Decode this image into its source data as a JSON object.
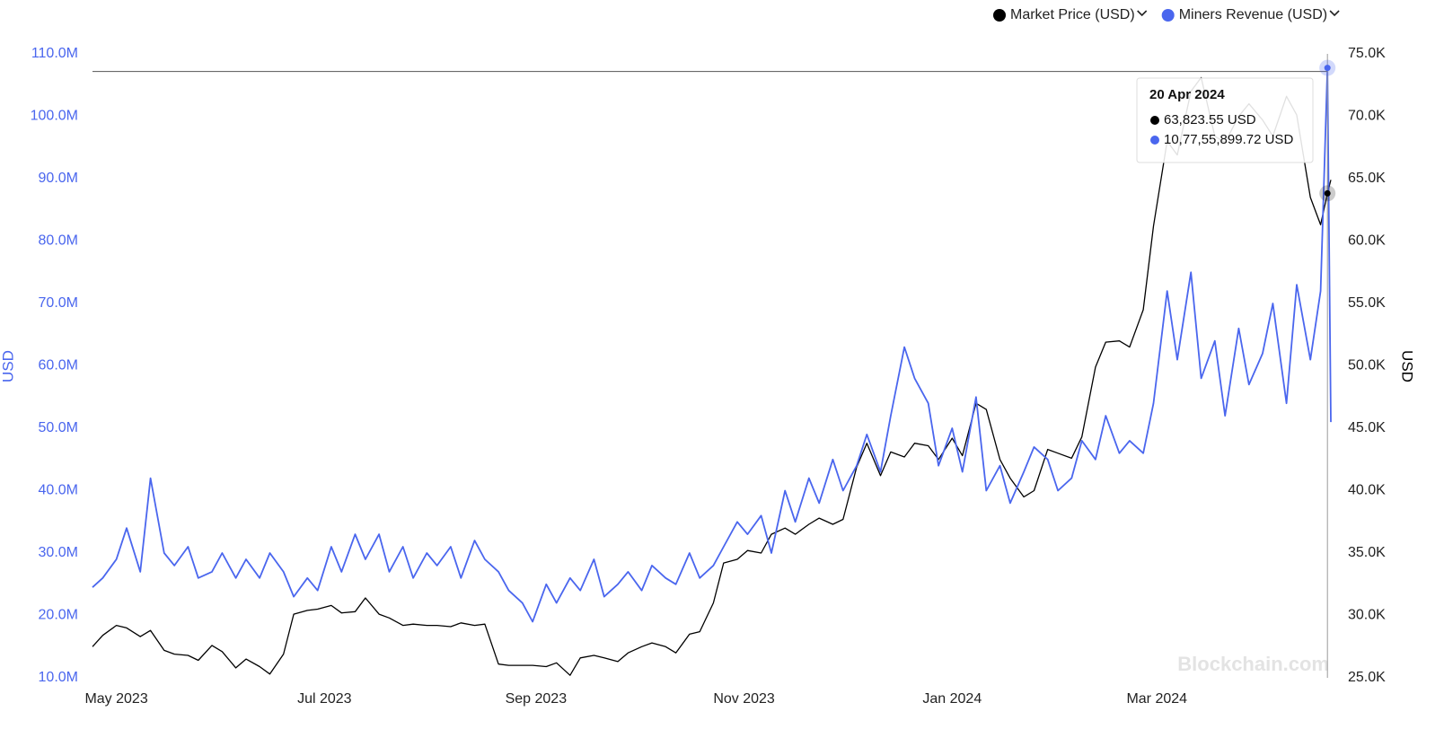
{
  "chart_data": {
    "type": "line",
    "legend": "top-right",
    "y_label": "USD",
    "y2_label": "USD",
    "watermark": "Blockchain.com",
    "x": [
      "2023-04-24",
      "2023-04-27",
      "2023-05-01",
      "2023-05-04",
      "2023-05-08",
      "2023-05-11",
      "2023-05-15",
      "2023-05-18",
      "2023-05-22",
      "2023-05-25",
      "2023-05-29",
      "2023-06-01",
      "2023-06-05",
      "2023-06-08",
      "2023-06-12",
      "2023-06-15",
      "2023-06-19",
      "2023-06-22",
      "2023-06-26",
      "2023-06-29",
      "2023-07-03",
      "2023-07-06",
      "2023-07-10",
      "2023-07-13",
      "2023-07-17",
      "2023-07-20",
      "2023-07-24",
      "2023-07-27",
      "2023-07-31",
      "2023-08-03",
      "2023-08-07",
      "2023-08-10",
      "2023-08-14",
      "2023-08-17",
      "2023-08-21",
      "2023-08-24",
      "2023-08-28",
      "2023-08-31",
      "2023-09-04",
      "2023-09-07",
      "2023-09-11",
      "2023-09-14",
      "2023-09-18",
      "2023-09-21",
      "2023-09-25",
      "2023-09-28",
      "2023-10-02",
      "2023-10-05",
      "2023-10-09",
      "2023-10-12",
      "2023-10-16",
      "2023-10-19",
      "2023-10-23",
      "2023-10-26",
      "2023-10-30",
      "2023-11-02",
      "2023-11-06",
      "2023-11-09",
      "2023-11-13",
      "2023-11-16",
      "2023-11-20",
      "2023-11-23",
      "2023-11-27",
      "2023-11-30",
      "2023-12-04",
      "2023-12-07",
      "2023-12-11",
      "2023-12-14",
      "2023-12-18",
      "2023-12-21",
      "2023-12-25",
      "2023-12-28",
      "2024-01-01",
      "2024-01-04",
      "2024-01-08",
      "2024-01-11",
      "2024-01-15",
      "2024-01-18",
      "2024-01-22",
      "2024-01-25",
      "2024-01-29",
      "2024-02-01",
      "2024-02-05",
      "2024-02-08",
      "2024-02-12",
      "2024-02-15",
      "2024-02-19",
      "2024-02-22",
      "2024-02-26",
      "2024-02-29",
      "2024-03-04",
      "2024-03-07",
      "2024-03-11",
      "2024-03-14",
      "2024-03-18",
      "2024-03-21",
      "2024-03-25",
      "2024-03-28",
      "2024-04-01",
      "2024-04-04",
      "2024-04-08",
      "2024-04-11",
      "2024-04-15",
      "2024-04-18",
      "2024-04-20",
      "2024-04-21"
    ],
    "xlim": [
      "2023-04-24",
      "2024-04-21"
    ],
    "xticks": [
      {
        "value": "2023-05-01",
        "label": "May 2023"
      },
      {
        "value": "2023-07-01",
        "label": "Jul 2023"
      },
      {
        "value": "2023-09-01",
        "label": "Sep 2023"
      },
      {
        "value": "2023-11-01",
        "label": "Nov 2023"
      },
      {
        "value": "2024-01-01",
        "label": "Jan 2024"
      },
      {
        "value": "2024-03-01",
        "label": "Mar 2024"
      }
    ],
    "ylim": [
      10000000,
      110000000
    ],
    "yticks": [
      {
        "value": 10000000,
        "label": "10.0M"
      },
      {
        "value": 20000000,
        "label": "20.0M"
      },
      {
        "value": 30000000,
        "label": "30.0M"
      },
      {
        "value": 40000000,
        "label": "40.0M"
      },
      {
        "value": 50000000,
        "label": "50.0M"
      },
      {
        "value": 60000000,
        "label": "60.0M"
      },
      {
        "value": 70000000,
        "label": "70.0M"
      },
      {
        "value": 80000000,
        "label": "80.0M"
      },
      {
        "value": 90000000,
        "label": "90.0M"
      },
      {
        "value": 100000000,
        "label": "100.0M"
      },
      {
        "value": 110000000,
        "label": "110.0M"
      }
    ],
    "y2lim": [
      25000,
      75000
    ],
    "y2ticks": [
      {
        "value": 25000,
        "label": "25.0K"
      },
      {
        "value": 30000,
        "label": "30.0K"
      },
      {
        "value": 35000,
        "label": "35.0K"
      },
      {
        "value": 40000,
        "label": "40.0K"
      },
      {
        "value": 45000,
        "label": "45.0K"
      },
      {
        "value": 50000,
        "label": "50.0K"
      },
      {
        "value": 55000,
        "label": "55.0K"
      },
      {
        "value": 60000,
        "label": "60.0K"
      },
      {
        "value": 65000,
        "label": "65.0K"
      },
      {
        "value": 70000,
        "label": "70.0K"
      },
      {
        "value": 75000,
        "label": "75.0K"
      }
    ],
    "series": [
      {
        "name": "Market Price (USD)",
        "color": "#000000",
        "axis": "y2",
        "values": [
          27500,
          28400,
          29200,
          29000,
          28300,
          28800,
          27200,
          26900,
          26800,
          26400,
          27600,
          27100,
          25800,
          26500,
          25900,
          25300,
          26900,
          30100,
          30400,
          30500,
          30800,
          30200,
          30300,
          31400,
          30100,
          29800,
          29200,
          29300,
          29200,
          29200,
          29100,
          29400,
          29200,
          29300,
          26100,
          26000,
          26000,
          26000,
          25900,
          26200,
          25200,
          26600,
          26800,
          26600,
          26300,
          27000,
          27500,
          27800,
          27500,
          27000,
          28500,
          28700,
          31000,
          34200,
          34500,
          35200,
          35000,
          36500,
          37000,
          36500,
          37300,
          37800,
          37300,
          37700,
          41900,
          43800,
          41200,
          43100,
          42700,
          43800,
          43600,
          42500,
          44200,
          42800,
          47000,
          46500,
          42500,
          41000,
          39500,
          40000,
          43300,
          43000,
          42600,
          44300,
          49900,
          51900,
          52000,
          51500,
          54500,
          61200,
          68000,
          66900,
          72000,
          73100,
          68400,
          67900,
          70000,
          71000,
          69700,
          68400,
          71600,
          70100,
          63500,
          61300,
          63823.55,
          64900
        ]
      },
      {
        "name": "Miners Revenue (USD)",
        "color": "#4a66ee",
        "axis": "y",
        "values": [
          24500000,
          26000000,
          29000000,
          34000000,
          27000000,
          42000000,
          30000000,
          28000000,
          31000000,
          26000000,
          27000000,
          30000000,
          26000000,
          29000000,
          26000000,
          30000000,
          27000000,
          23000000,
          26000000,
          24000000,
          31000000,
          27000000,
          33000000,
          29000000,
          33000000,
          27000000,
          31000000,
          26000000,
          30000000,
          28000000,
          31000000,
          26000000,
          32000000,
          29000000,
          27000000,
          24000000,
          22000000,
          19000000,
          25000000,
          22000000,
          26000000,
          24000000,
          29000000,
          23000000,
          25000000,
          27000000,
          24000000,
          28000000,
          26000000,
          25000000,
          30000000,
          26000000,
          28000000,
          31000000,
          35000000,
          33000000,
          36000000,
          30000000,
          40000000,
          35000000,
          42000000,
          38000000,
          45000000,
          40000000,
          44000000,
          49000000,
          43000000,
          52000000,
          63000000,
          58000000,
          54000000,
          44000000,
          50000000,
          43000000,
          55000000,
          40000000,
          44000000,
          38000000,
          43000000,
          47000000,
          45000000,
          40000000,
          42000000,
          48000000,
          45000000,
          52000000,
          46000000,
          48000000,
          46000000,
          54000000,
          72000000,
          61000000,
          75000000,
          58000000,
          64000000,
          52000000,
          66000000,
          57000000,
          62000000,
          70000000,
          54000000,
          73000000,
          61000000,
          72000000,
          107755899.72,
          51000000
        ]
      }
    ],
    "tooltip": {
      "title": "20 Apr 2024",
      "lines": [
        "63,823.55 USD",
        "10,77,55,899.72 USD"
      ]
    }
  }
}
